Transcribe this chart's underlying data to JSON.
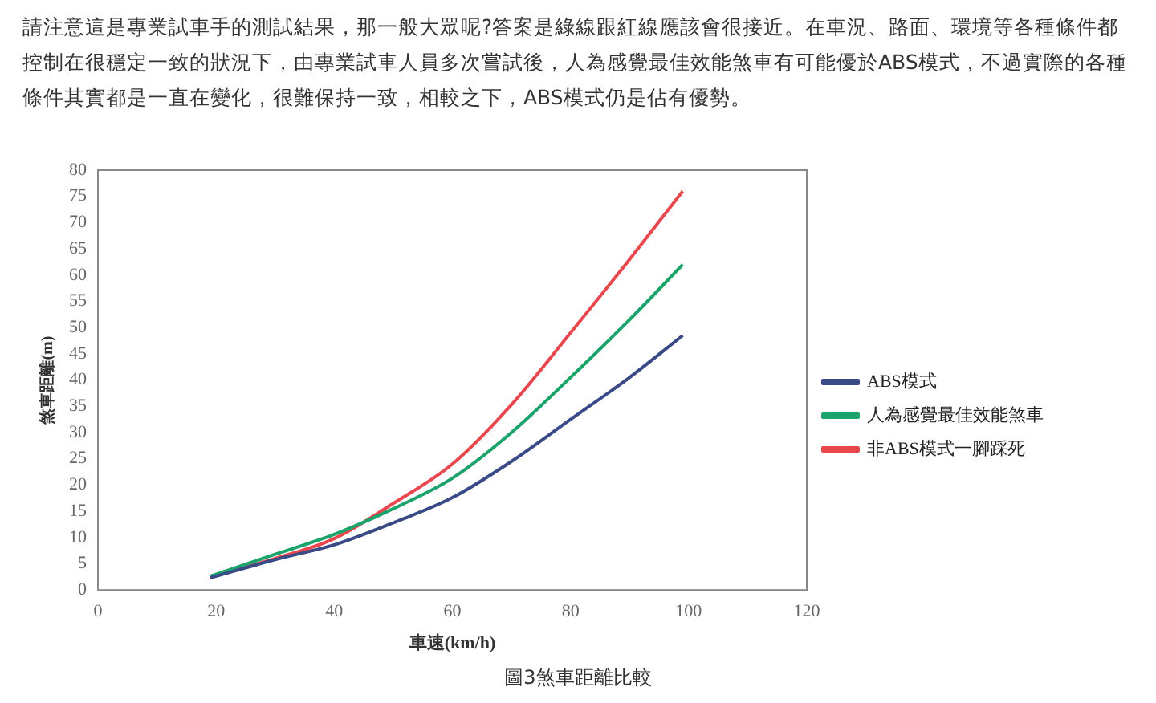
{
  "chart_data": {
    "type": "line",
    "subtitle": "請注意這是專業試車手的測試結果，那一般大眾呢?答案是綠線跟紅線應該會很接近。在車況、路面、環境等各種條件都控制在很穩定一致的狀況下，由專業試車人員多次嘗試後，人為感覺最佳效能煞車有可能優於ABS模式，不過實際的各種條件其實都是一直在變化，很難保持一致，相較之下，ABS模式仍是佔有優勢。",
    "xlabel": "車速(km/h)",
    "ylabel": "煞車距離(m)",
    "annotations": [
      "圖3煞車距離比較"
    ],
    "x": [
      19,
      30,
      40,
      50,
      60,
      70,
      80,
      90,
      99
    ],
    "series": [
      {
        "name": "ABS模式",
        "color": "#3a4a86",
        "values": [
          2.3,
          5.8,
          8.6,
          12.8,
          17.6,
          24.5,
          32.5,
          40.5,
          48.5
        ]
      },
      {
        "name": "人為感覺最佳效能煞車",
        "color": "#1aa36a",
        "values": [
          2.6,
          6.8,
          10.6,
          15.5,
          21.3,
          30,
          40.5,
          51.5,
          62
        ]
      },
      {
        "name": "非ABS模式一腳踩死",
        "color": "#e8474e",
        "values": [
          2.6,
          6,
          9.8,
          16.5,
          24,
          35.3,
          49,
          63,
          76
        ]
      }
    ],
    "xlim": [
      0,
      120
    ],
    "xticks": [
      0,
      20,
      40,
      60,
      80,
      100,
      120
    ],
    "ylim": [
      0,
      80
    ],
    "yticks": [
      0,
      5,
      10,
      15,
      20,
      25,
      30,
      35,
      40,
      45,
      50,
      55,
      60,
      65,
      70,
      75,
      80
    ],
    "grid": false,
    "legend": "right",
    "marker": "none",
    "line_style": "solid"
  }
}
